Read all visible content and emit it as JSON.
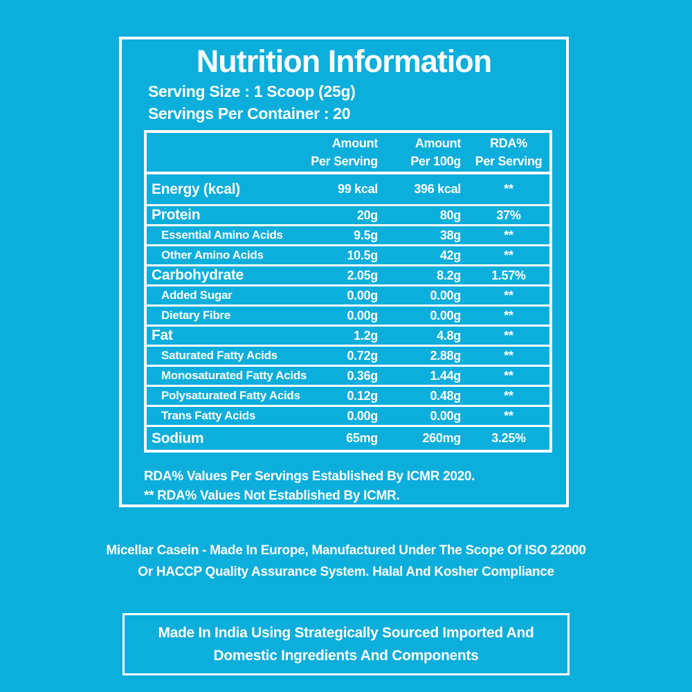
{
  "theme": {
    "background": "#0CAEDB",
    "text": "#FFFFFF",
    "border": "#FFFFFF"
  },
  "panel": {
    "title": "Nutrition Information",
    "serving_size": "Serving Size : 1 Scoop (25g)",
    "servings_per_container": "Servings Per Container : 20",
    "footnotes": [
      "RDA%  Values Per Servings Established By ICMR 2020.",
      "** RDA%  Values Not Established By ICMR."
    ]
  },
  "table": {
    "headers": [
      {
        "line1": "Amount",
        "line2": "Per Serving"
      },
      {
        "line1": "Amount",
        "line2": "Per 100g"
      },
      {
        "line1": "RDA%",
        "line2": "Per Serving"
      }
    ],
    "rows": [
      {
        "label": "Energy (kcal)",
        "level": "main",
        "per_serving": "99 kcal",
        "per_100g": "396 kcal",
        "rda_percent": "**"
      },
      {
        "label": "Protein",
        "level": "main",
        "per_serving": "20g",
        "per_100g": "80g",
        "rda_percent": "37%"
      },
      {
        "label": "Essential Amino Acids",
        "level": "sub",
        "per_serving": "9.5g",
        "per_100g": "38g",
        "rda_percent": "**"
      },
      {
        "label": "Other Amino Acids",
        "level": "sub",
        "per_serving": "10.5g",
        "per_100g": "42g",
        "rda_percent": "**"
      },
      {
        "label": "Carbohydrate",
        "level": "main",
        "per_serving": "2.05g",
        "per_100g": "8.2g",
        "rda_percent": "1.57%"
      },
      {
        "label": "Added Sugar",
        "level": "sub",
        "per_serving": "0.00g",
        "per_100g": "0.00g",
        "rda_percent": "**"
      },
      {
        "label": "Dietary Fibre",
        "level": "sub",
        "per_serving": "0.00g",
        "per_100g": "0.00g",
        "rda_percent": "**"
      },
      {
        "label": "Fat",
        "level": "main",
        "per_serving": "1.2g",
        "per_100g": "4.8g",
        "rda_percent": "**"
      },
      {
        "label": "Saturated Fatty Acids",
        "level": "sub",
        "per_serving": "0.72g",
        "per_100g": "2.88g",
        "rda_percent": "**"
      },
      {
        "label": "Monosaturated Fatty Acids",
        "level": "sub",
        "per_serving": "0.36g",
        "per_100g": "1.44g",
        "rda_percent": "**"
      },
      {
        "label": "Polysaturated Fatty Acids",
        "level": "sub",
        "per_serving": "0.12g",
        "per_100g": "0.48g",
        "rda_percent": "**"
      },
      {
        "label": "Trans Fatty Acids",
        "level": "sub",
        "per_serving": "0.00g",
        "per_100g": "0.00g",
        "rda_percent": "**"
      },
      {
        "label": "Sodium",
        "level": "main",
        "per_serving": "65mg",
        "per_100g": "260mg",
        "rda_percent": "3.25%"
      }
    ]
  },
  "notes": {
    "line1": "Micellar Casein - Made In Europe, Manufactured Under The Scope Of ISO 22000",
    "line2": "Or HACCP Quality Assurance System. Halal And Kosher Compliance"
  },
  "bottom_box": {
    "line1": "Made In India Using Strategically Sourced Imported And",
    "line2": "Domestic Ingredients And Components"
  }
}
